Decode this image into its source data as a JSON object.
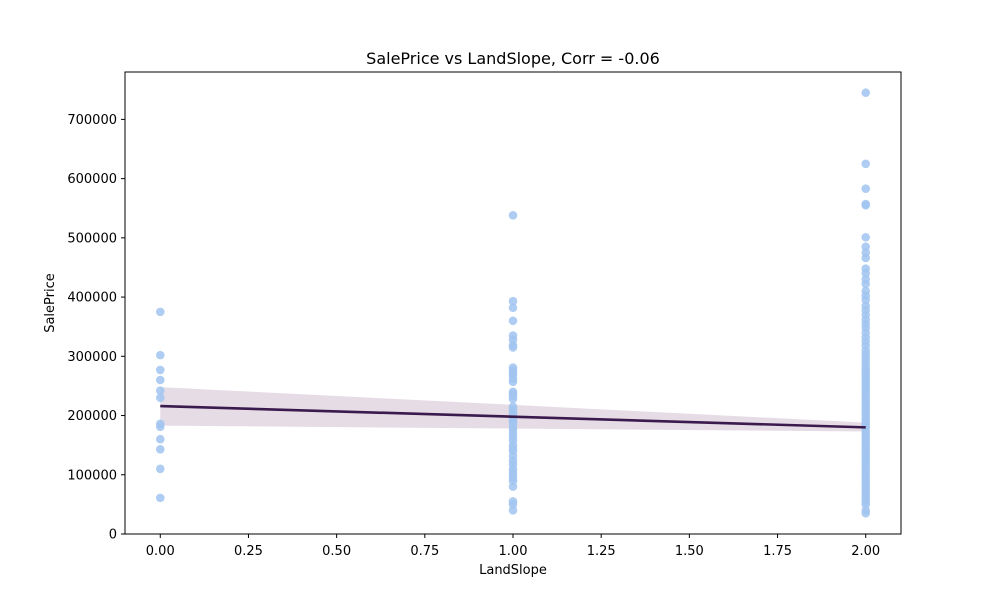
{
  "chart_data": {
    "type": "scatter",
    "title": "SalePrice vs LandSlope, Corr = -0.06",
    "xlabel": "LandSlope",
    "ylabel": "SalePrice",
    "xlim": [
      -0.1,
      2.1
    ],
    "ylim": [
      0,
      780000
    ],
    "xticks": [
      0.0,
      0.25,
      0.5,
      0.75,
      1.0,
      1.25,
      1.5,
      1.75,
      2.0
    ],
    "xtick_labels": [
      "0.00",
      "0.25",
      "0.50",
      "0.75",
      "1.00",
      "1.25",
      "1.50",
      "1.75",
      "2.00"
    ],
    "yticks": [
      0,
      100000,
      200000,
      300000,
      400000,
      500000,
      600000,
      700000
    ],
    "ytick_labels": [
      "0",
      "100000",
      "200000",
      "300000",
      "400000",
      "500000",
      "600000",
      "700000"
    ],
    "grid": false,
    "point_color": "#a1c4f0",
    "line_color": "#3b1a4e",
    "band_color": "#dcd0dc",
    "series": [
      {
        "x_value": 0,
        "values": [
          375000,
          302000,
          277000,
          260000,
          242000,
          230000,
          186000,
          181000,
          160000,
          143000,
          110000,
          61000
        ]
      },
      {
        "x_value": 1,
        "values": [
          538000,
          393000,
          382000,
          360000,
          335000,
          328000,
          319000,
          315000,
          281000,
          277000,
          272000,
          268000,
          262000,
          257000,
          240000,
          237000,
          233000,
          228000,
          215000,
          210000,
          205000,
          200000,
          195000,
          190000,
          187000,
          180000,
          176000,
          170000,
          164000,
          158000,
          150000,
          145000,
          140000,
          132000,
          124000,
          118000,
          110000,
          105000,
          100000,
          95000,
          90000,
          80000,
          55000,
          50000,
          40000
        ]
      },
      {
        "x_value": 2,
        "values": [
          745000,
          625000,
          583000,
          557000,
          555000,
          501000,
          485000,
          475000,
          466000,
          448000,
          440000,
          430000,
          422000,
          410000,
          402000,
          395000,
          385000,
          378000,
          370000,
          362000,
          355000,
          348000,
          340000,
          332000,
          325000,
          318000,
          310000,
          304000,
          298000,
          292000,
          286000,
          280000,
          275000,
          270000,
          265000,
          260000,
          255000,
          250000,
          245000,
          240000,
          235000,
          230000,
          225000,
          220000,
          215000,
          210000,
          205000,
          200000,
          195000,
          190000,
          185000,
          180000,
          175000,
          170000,
          165000,
          160000,
          155000,
          150000,
          145000,
          140000,
          135000,
          130000,
          125000,
          120000,
          115000,
          110000,
          105000,
          100000,
          95000,
          90000,
          85000,
          80000,
          75000,
          70000,
          65000,
          60000,
          55000,
          50000,
          40000,
          35000
        ]
      }
    ],
    "regression": {
      "x": [
        0,
        2
      ],
      "y": [
        216000,
        180000
      ],
      "ci_lower": [
        183000,
        173000
      ],
      "ci_upper": [
        248000,
        188000
      ]
    }
  }
}
